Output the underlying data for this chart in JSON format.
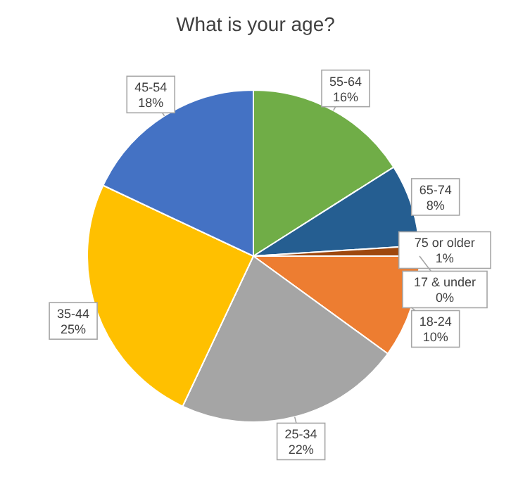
{
  "chart_data": {
    "type": "pie",
    "title": "What is your age?",
    "categories": [
      "55-64",
      "65-74",
      "75 or older",
      "17 & under",
      "18-24",
      "25-34",
      "35-44",
      "45-54"
    ],
    "values": [
      16,
      8,
      1,
      0,
      10,
      22,
      25,
      18
    ],
    "colors": [
      "#70ad47",
      "#255e91",
      "#9e480e",
      "#5b9bd5",
      "#ed7d31",
      "#a5a5a5",
      "#ffc000",
      "#4472c4"
    ],
    "value_labels": [
      "16%",
      "8%",
      "1%",
      "0%",
      "10%",
      "22%",
      "25%",
      "18%"
    ]
  }
}
